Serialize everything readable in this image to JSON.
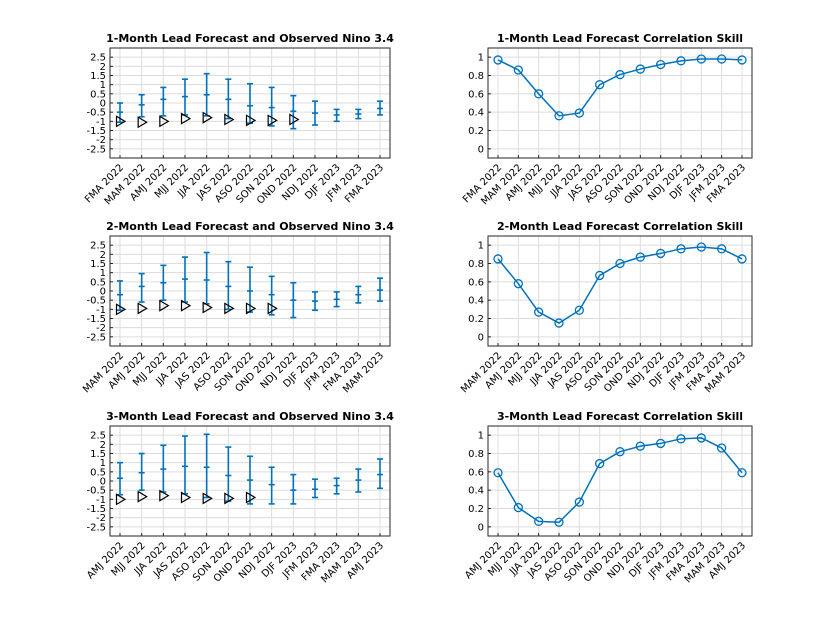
{
  "figure": {
    "colors": {
      "series": "#0072bd",
      "observed_marker": "#000000",
      "grid": "#dcdcdc",
      "axes": "#262626"
    }
  },
  "chart_data": [
    {
      "type": "errorbar",
      "title": "1-Month Lead Forecast and Observed Nino 3.4",
      "categories": [
        "FMA 2022",
        "MAM 2022",
        "AMJ 2022",
        "MJJ 2022",
        "JJA 2022",
        "JAS 2022",
        "ASO 2022",
        "SON 2022",
        "OND 2022",
        "NDJ 2022",
        "DJF 2023",
        "JFM 2023",
        "FMA 2023"
      ],
      "yticks": [
        "2.5",
        "2",
        "1.5",
        "1",
        "0.5",
        "0",
        "-0.5",
        "-1",
        "-1.5",
        "-2",
        "-2.5"
      ],
      "ylim": [
        -3,
        3
      ],
      "grid": true,
      "forecast_mean": [
        -0.5,
        -0.1,
        0.2,
        0.35,
        0.45,
        0.2,
        -0.15,
        -0.25,
        -0.45,
        -0.55,
        -0.65,
        -0.6,
        -0.3
      ],
      "forecast_lower": [
        -1.05,
        -0.75,
        -0.7,
        -0.65,
        -0.7,
        -0.85,
        -1.1,
        -1.25,
        -1.4,
        -1.2,
        -1.0,
        -0.85,
        -0.65
      ],
      "forecast_upper": [
        0.0,
        0.45,
        0.85,
        1.3,
        1.6,
        1.3,
        1.05,
        0.85,
        0.4,
        0.1,
        -0.35,
        -0.35,
        0.1
      ],
      "observed": [
        -1.0,
        -1.05,
        -1.0,
        -0.85,
        -0.8,
        -0.9,
        -0.95,
        -0.95,
        -0.9,
        null,
        null,
        null,
        null
      ]
    },
    {
      "type": "line",
      "title": "1-Month Lead Forecast Correlation Skill",
      "categories": [
        "FMA 2022",
        "MAM 2022",
        "AMJ 2022",
        "MJJ 2022",
        "JJA 2022",
        "JAS 2022",
        "ASO 2022",
        "SON 2022",
        "OND 2022",
        "NDJ 2022",
        "DJF 2023",
        "JFM 2023",
        "FMA 2023"
      ],
      "yticks": [
        "1",
        "0.8",
        "0.6",
        "0.4",
        "0.2",
        "0"
      ],
      "ylim": [
        -0.1,
        1.1
      ],
      "grid": true,
      "values": [
        0.97,
        0.86,
        0.6,
        0.36,
        0.39,
        0.7,
        0.81,
        0.87,
        0.92,
        0.96,
        0.98,
        0.98,
        0.97
      ]
    },
    {
      "type": "errorbar",
      "title": "2-Month Lead Forecast and Observed Nino 3.4",
      "categories": [
        "MAM 2022",
        "AMJ 2022",
        "MJJ 2022",
        "JJA 2022",
        "JAS 2022",
        "ASO 2022",
        "SON 2022",
        "OND 2022",
        "NDJ 2022",
        "DJF 2023",
        "JFM 2023",
        "FMA 2023",
        "MAM 2023"
      ],
      "yticks": [
        "2.5",
        "2",
        "1.5",
        "1",
        "0.5",
        "0",
        "-0.5",
        "-1",
        "-1.5",
        "-2",
        "-2.5"
      ],
      "ylim": [
        -3,
        3
      ],
      "grid": true,
      "forecast_mean": [
        -0.2,
        0.25,
        0.45,
        0.65,
        0.6,
        0.25,
        0.0,
        -0.2,
        -0.5,
        -0.55,
        -0.45,
        -0.2,
        0.05
      ],
      "forecast_lower": [
        -1.05,
        -0.6,
        -0.5,
        -0.6,
        -0.7,
        -1.0,
        -1.15,
        -1.3,
        -1.45,
        -1.05,
        -0.85,
        -0.65,
        -0.55
      ],
      "forecast_upper": [
        0.55,
        0.95,
        1.4,
        1.85,
        2.1,
        1.6,
        1.3,
        0.8,
        0.45,
        -0.05,
        -0.05,
        0.25,
        0.7
      ],
      "observed": [
        -1.0,
        -0.95,
        -0.8,
        -0.8,
        -0.9,
        -0.95,
        -0.95,
        -0.95,
        null,
        null,
        null,
        null,
        null
      ]
    },
    {
      "type": "line",
      "title": "2-Month Lead Forecast Correlation Skill",
      "categories": [
        "MAM 2022",
        "AMJ 2022",
        "MJJ 2022",
        "JJA 2022",
        "JAS 2022",
        "ASO 2022",
        "SON 2022",
        "OND 2022",
        "NDJ 2022",
        "DJF 2023",
        "JFM 2023",
        "FMA 2023",
        "MAM 2023"
      ],
      "yticks": [
        "1",
        "0.8",
        "0.6",
        "0.4",
        "0.2",
        "0"
      ],
      "ylim": [
        -0.1,
        1.1
      ],
      "grid": true,
      "values": [
        0.85,
        0.58,
        0.27,
        0.15,
        0.29,
        0.67,
        0.8,
        0.87,
        0.91,
        0.96,
        0.98,
        0.96,
        0.85
      ]
    },
    {
      "type": "errorbar",
      "title": "3-Month Lead Forecast and Observed Nino 3.4",
      "categories": [
        "AMJ 2022",
        "MJJ 2022",
        "JJA 2022",
        "JAS 2022",
        "ASO 2022",
        "SON 2022",
        "OND 2022",
        "NDJ 2022",
        "DJF 2023",
        "JFM 2023",
        "FMA 2023",
        "MAM 2023",
        "AMJ 2023"
      ],
      "yticks": [
        "2.5",
        "2",
        "1.5",
        "1",
        "0.5",
        "0",
        "-0.5",
        "-1",
        "-1.5",
        "-2",
        "-2.5"
      ],
      "ylim": [
        -3,
        3
      ],
      "grid": true,
      "forecast_mean": [
        0.15,
        0.45,
        0.65,
        0.8,
        0.75,
        0.3,
        0.05,
        -0.2,
        -0.5,
        -0.45,
        -0.25,
        0.05,
        0.35
      ],
      "forecast_lower": [
        -0.75,
        -0.5,
        -0.6,
        -0.7,
        -0.9,
        -1.1,
        -1.25,
        -1.25,
        -1.25,
        -0.9,
        -0.7,
        -0.6,
        -0.4
      ],
      "forecast_upper": [
        1.0,
        1.5,
        1.95,
        2.45,
        2.55,
        1.85,
        1.35,
        0.75,
        0.35,
        0.1,
        0.15,
        0.65,
        1.2
      ],
      "observed": [
        -1.0,
        -0.85,
        -0.8,
        -0.9,
        -0.95,
        -0.95,
        -0.9,
        null,
        null,
        null,
        null,
        null,
        null
      ]
    },
    {
      "type": "line",
      "title": "3-Month Lead Forecast Correlation Skill",
      "categories": [
        "AMJ 2022",
        "MJJ 2022",
        "JJA 2022",
        "JAS 2022",
        "ASO 2022",
        "SON 2022",
        "OND 2022",
        "NDJ 2022",
        "DJF 2023",
        "JFM 2023",
        "FMA 2023",
        "MAM 2023",
        "AMJ 2023"
      ],
      "yticks": [
        "1",
        "0.8",
        "0.6",
        "0.4",
        "0.2",
        "0"
      ],
      "ylim": [
        -0.1,
        1.1
      ],
      "grid": true,
      "values": [
        0.59,
        0.21,
        0.06,
        0.05,
        0.27,
        0.69,
        0.82,
        0.88,
        0.91,
        0.96,
        0.97,
        0.86,
        0.59
      ]
    }
  ]
}
